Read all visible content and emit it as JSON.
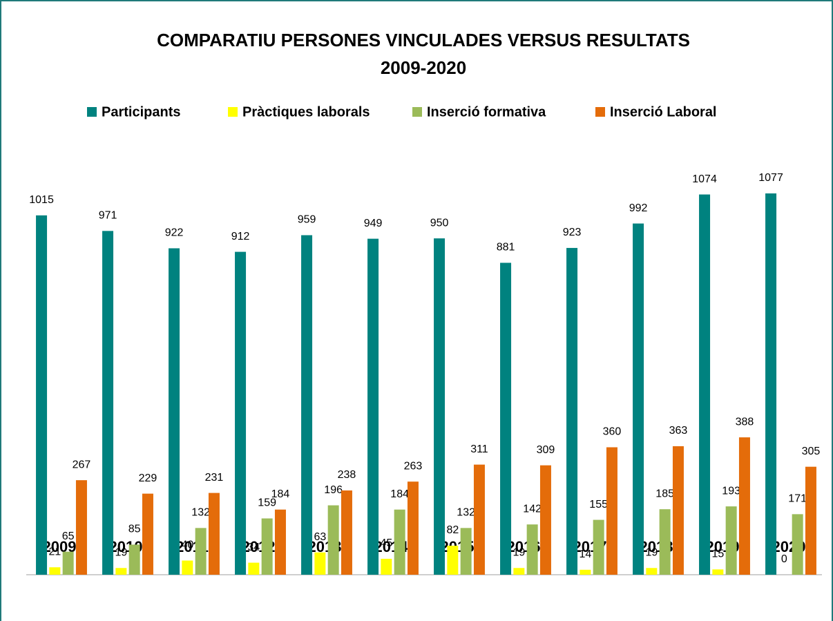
{
  "chart_data": {
    "type": "bar",
    "title": "COMPARATIU PERSONES VINCULADES VERSUS RESULTATS",
    "subtitle": "2009-2020",
    "categories": [
      "2009",
      "2010",
      "2011",
      "2012",
      "2013",
      "2014",
      "2015",
      "2016",
      "2017",
      "2018",
      "2019",
      "2020"
    ],
    "series": [
      {
        "name": "Participants",
        "color": "#00827f",
        "values": [
          1015,
          971,
          922,
          912,
          959,
          949,
          950,
          881,
          923,
          992,
          1074,
          1077
        ]
      },
      {
        "name": "Pràctiques laborals",
        "color": "#ffff00",
        "values": [
          21,
          19,
          40,
          34,
          63,
          45,
          82,
          19,
          14,
          19,
          15,
          0
        ]
      },
      {
        "name": "Inserció formativa",
        "color": "#9bbb59",
        "values": [
          65,
          85,
          132,
          159,
          196,
          184,
          132,
          142,
          155,
          185,
          193,
          171
        ]
      },
      {
        "name": "Inserció Laboral",
        "color": "#e46c0a",
        "values": [
          267,
          229,
          231,
          184,
          238,
          263,
          311,
          309,
          360,
          363,
          388,
          305
        ]
      }
    ],
    "legend": "top"
  }
}
